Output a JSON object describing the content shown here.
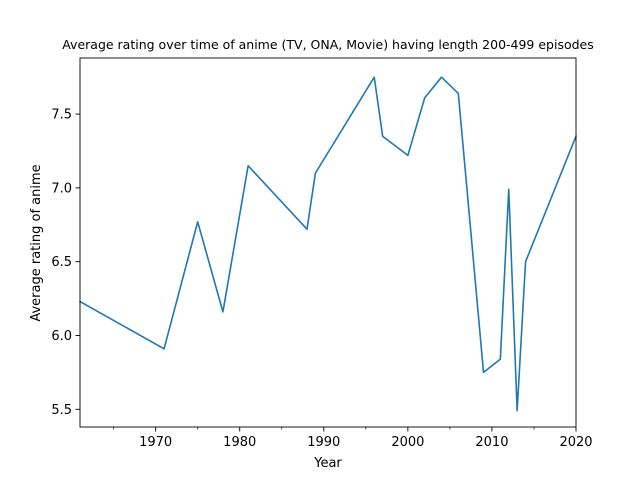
{
  "chart_data": {
    "type": "line",
    "title": "Average rating over time of anime (TV, ONA, Movie) having length 200-499 episodes",
    "xlabel": "Year",
    "ylabel": "Average rating of anime",
    "xlim": [
      1961,
      2020
    ],
    "ylim": [
      5.38,
      7.88
    ],
    "x_major_ticks": [
      1970,
      1980,
      1990,
      2000,
      2010,
      2020
    ],
    "x_minor_ticks": [
      1965,
      1975,
      1985,
      1995,
      2005,
      2015
    ],
    "y_major_ticks": [
      5.5,
      6.0,
      6.5,
      7.0,
      7.5
    ],
    "x_tick_labels": [
      "1970",
      "1980",
      "1990",
      "2000",
      "2010",
      "2020"
    ],
    "y_tick_labels": [
      "5.5",
      "6.0",
      "6.5",
      "7.0",
      "7.5"
    ],
    "grid": false,
    "legend": "none",
    "series": [
      {
        "color": "#1f77b4",
        "x": [
          1961,
          1971,
          1975,
          1978,
          1981,
          1988,
          1989,
          1996,
          1997,
          2000,
          2002,
          2004,
          2006,
          2009,
          2011,
          2012,
          2013,
          2014,
          2020
        ],
        "y": [
          6.23,
          5.91,
          6.77,
          6.16,
          7.15,
          6.72,
          7.1,
          7.75,
          7.35,
          7.22,
          7.61,
          7.75,
          7.64,
          5.75,
          5.84,
          6.99,
          5.49,
          6.5,
          7.35
        ]
      }
    ]
  }
}
